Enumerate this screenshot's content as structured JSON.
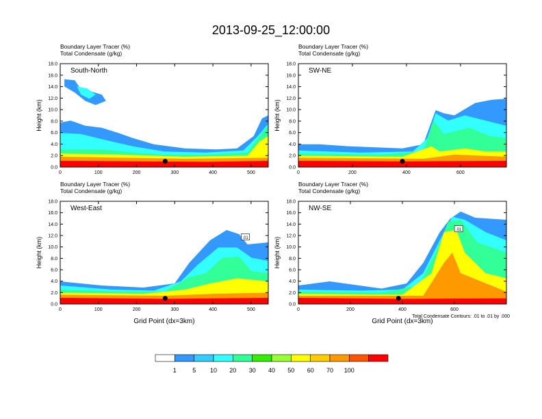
{
  "title": "2013-09-25_12:00:00",
  "chart_data": [
    {
      "type": "heatmap",
      "label": "South-North",
      "subtitle_1": "Boundary Layer Tracer   (%)",
      "subtitle_2": "Total Condensate   (g/kg)",
      "ylabel": "Height (km)",
      "xlabel": "",
      "xlim": [
        0,
        545
      ],
      "ylim": [
        0,
        18
      ],
      "xticks": [
        "0",
        "100",
        "200",
        "300",
        "400",
        "500"
      ],
      "yticks": [
        "0.0",
        "2.0",
        "4.0",
        "6.0",
        "8.0",
        "10.0",
        "12.0",
        "14.0",
        "16.0",
        "18.0"
      ],
      "marker_x": 275,
      "marker_y": 1.0
    },
    {
      "type": "heatmap",
      "label": "SW-NE",
      "subtitle_1": "Boundary Layer Tracer   (%)",
      "subtitle_2": "Total Condensate   (g/kg)",
      "ylabel": "Height (km)",
      "xlabel": "",
      "xlim": [
        0,
        770
      ],
      "ylim": [
        0,
        18
      ],
      "xticks": [
        "0",
        "200",
        "400",
        "600"
      ],
      "yticks": [
        "0.0",
        "2.0",
        "4.0",
        "6.0",
        "8.0",
        "10.0",
        "12.0",
        "14.0",
        "16.0",
        "18.0"
      ],
      "marker_x": 385,
      "marker_y": 1.0
    },
    {
      "type": "heatmap",
      "label": "West-East",
      "subtitle_1": "Boundary Layer Tracer   (%)",
      "subtitle_2": "Total Condensate   (g/kg)",
      "ylabel": "Height (km)",
      "xlabel": "Grid Point (dx=3km)",
      "xlim": [
        0,
        545
      ],
      "ylim": [
        0,
        18
      ],
      "xticks": [
        "0",
        "100",
        "200",
        "300",
        "400",
        "500"
      ],
      "yticks": [
        "0.0",
        "2.0",
        "4.0",
        "6.0",
        "8.0",
        "10.0",
        "12.0",
        "14.0",
        "16.0",
        "18.0"
      ],
      "marker_x": 275,
      "marker_y": 1.0,
      "contour_label": ".01"
    },
    {
      "type": "heatmap",
      "label": "NW-SE",
      "subtitle_1": "Boundary Layer Tracer   (%)",
      "subtitle_2": "Total Condensate   (g/kg)",
      "ylabel": "Height (km)",
      "xlabel": "Grid Point (dx=3km)",
      "xlim": [
        0,
        800
      ],
      "ylim": [
        0,
        18
      ],
      "xticks": [
        "0",
        "200",
        "400",
        "600"
      ],
      "yticks": [
        "0.0",
        "2.0",
        "4.0",
        "6.0",
        "8.0",
        "10.0",
        "12.0",
        "14.0",
        "16.0",
        "18.0"
      ],
      "marker_x": 385,
      "marker_y": 1.0,
      "contour_label": ".01",
      "footnote": "Total Condensate Contours: .01 to .01 by .000"
    }
  ],
  "colorbar": {
    "labels": [
      "1",
      "5",
      "10",
      "20",
      "30",
      "40",
      "50",
      "60",
      "70",
      "100"
    ],
    "colors": [
      "#ffffff",
      "#3399ff",
      "#33ccff",
      "#33ffff",
      "#33ff99",
      "#33ee00",
      "#99ff33",
      "#ffff00",
      "#ffcc00",
      "#ff9900",
      "#ff5500",
      "#ff0000"
    ]
  }
}
